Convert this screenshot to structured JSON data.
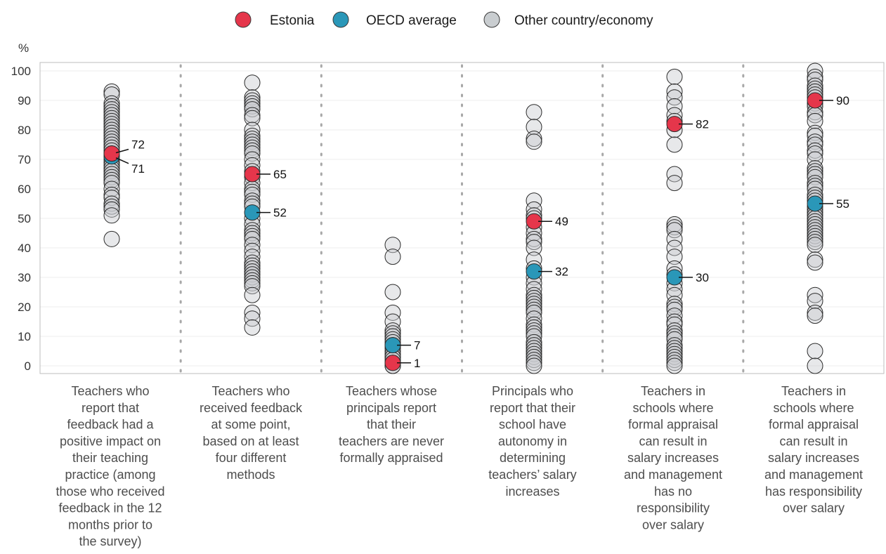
{
  "chart_data": {
    "type": "scatter",
    "y_unit_label": "%",
    "ylim": [
      0,
      100
    ],
    "y_ticks": [
      0,
      10,
      20,
      30,
      40,
      50,
      60,
      70,
      80,
      90,
      100
    ],
    "grid": true,
    "legend": {
      "placement": "top-center",
      "entries": [
        {
          "key": "estonia",
          "label": "Estonia",
          "color": "#e5364b"
        },
        {
          "key": "oecd",
          "label": "OECD average",
          "color": "#2a97b8"
        },
        {
          "key": "other",
          "label": "Other country/economy",
          "color": "#c9cdd0"
        }
      ]
    },
    "categories": [
      {
        "label_lines": [
          "Teachers who",
          "report that",
          "feedback had a",
          "positive impact on",
          "their teaching",
          "practice (among",
          "those who received",
          "feedback in the 12",
          "months prior to",
          "the survey)"
        ],
        "estonia": 72,
        "oecd": 71,
        "estonia_label": "72",
        "oecd_label": "71",
        "others": [
          93,
          92,
          89,
          88,
          87,
          86,
          85,
          84,
          83,
          82,
          81,
          80,
          79,
          78,
          77,
          76,
          75,
          74,
          73,
          72,
          71,
          70,
          69,
          68,
          67,
          66,
          65,
          64,
          63,
          62,
          60,
          58,
          57,
          55,
          54,
          53,
          51,
          43
        ]
      },
      {
        "label_lines": [
          "Teachers who",
          "received feedback",
          "at some point,",
          "based on at least",
          "four different",
          "methods"
        ],
        "estonia": 65,
        "oecd": 52,
        "estonia_label": "65",
        "oecd_label": "52",
        "others": [
          96,
          91,
          90,
          89,
          88,
          87,
          85,
          84,
          80,
          78,
          77,
          76,
          75,
          74,
          73,
          72,
          70,
          68,
          66,
          64,
          62,
          60,
          59,
          58,
          56,
          55,
          54,
          50,
          48,
          46,
          45,
          44,
          43,
          41,
          39,
          37,
          35,
          34,
          33,
          32,
          31,
          30,
          29,
          28,
          27,
          24,
          18,
          16,
          13
        ]
      },
      {
        "label_lines": [
          "Teachers whose",
          "principals report",
          "that their",
          "teachers are never",
          "formally appraised"
        ],
        "estonia": 1,
        "oecd": 7,
        "estonia_label": "1",
        "oecd_label": "7",
        "others": [
          41,
          37,
          25,
          18,
          15,
          12,
          11,
          10,
          9,
          8,
          7,
          6,
          5,
          4,
          3,
          3,
          2,
          1,
          0,
          0
        ]
      },
      {
        "label_lines": [
          "Principals who",
          "report that their",
          "school have",
          "autonomy in",
          "determining",
          "teachers’ salary",
          "increases"
        ],
        "estonia": 49,
        "oecd": 32,
        "estonia_label": "49",
        "oecd_label": "32",
        "others": [
          86,
          81,
          77,
          76,
          56,
          53,
          51,
          50,
          47,
          45,
          43,
          42,
          40,
          36,
          33,
          30,
          28,
          26,
          24,
          23,
          22,
          21,
          20,
          19,
          18,
          16,
          14,
          13,
          12,
          11,
          10,
          8,
          7,
          6,
          5,
          4,
          3,
          2,
          1,
          0
        ]
      },
      {
        "label_lines": [
          "Teachers in",
          "schools where",
          "formal appraisal",
          "can result in",
          "salary increases",
          "and management",
          "has no",
          "responsibility",
          "over salary"
        ],
        "estonia": 82,
        "oecd": 30,
        "estonia_label": "82",
        "oecd_label": "30",
        "others": [
          98,
          93,
          91,
          88,
          85,
          83,
          80,
          75,
          65,
          62,
          48,
          47,
          46,
          43,
          40,
          37,
          33,
          31,
          28,
          26,
          24,
          21,
          20,
          19,
          17,
          15,
          14,
          12,
          11,
          10,
          9,
          7,
          6,
          5,
          4,
          3,
          2,
          1,
          0
        ]
      },
      {
        "label_lines": [
          "Teachers in",
          "schools where",
          "formal appraisal",
          "can result in",
          "salary increases",
          "and management",
          "has responsibility",
          "over salary"
        ],
        "estonia": 90,
        "oecd": 55,
        "estonia_label": "90",
        "oecd_label": "55",
        "others": [
          100,
          98,
          97,
          95,
          94,
          93,
          92,
          91,
          89,
          88,
          86,
          85,
          83,
          79,
          78,
          76,
          75,
          73,
          72,
          70,
          67,
          66,
          65,
          64,
          62,
          61,
          60,
          58,
          57,
          56,
          54,
          53,
          52,
          51,
          50,
          49,
          48,
          47,
          46,
          45,
          44,
          43,
          42,
          41,
          36,
          35,
          24,
          22,
          18,
          17,
          5,
          0
        ]
      }
    ]
  }
}
